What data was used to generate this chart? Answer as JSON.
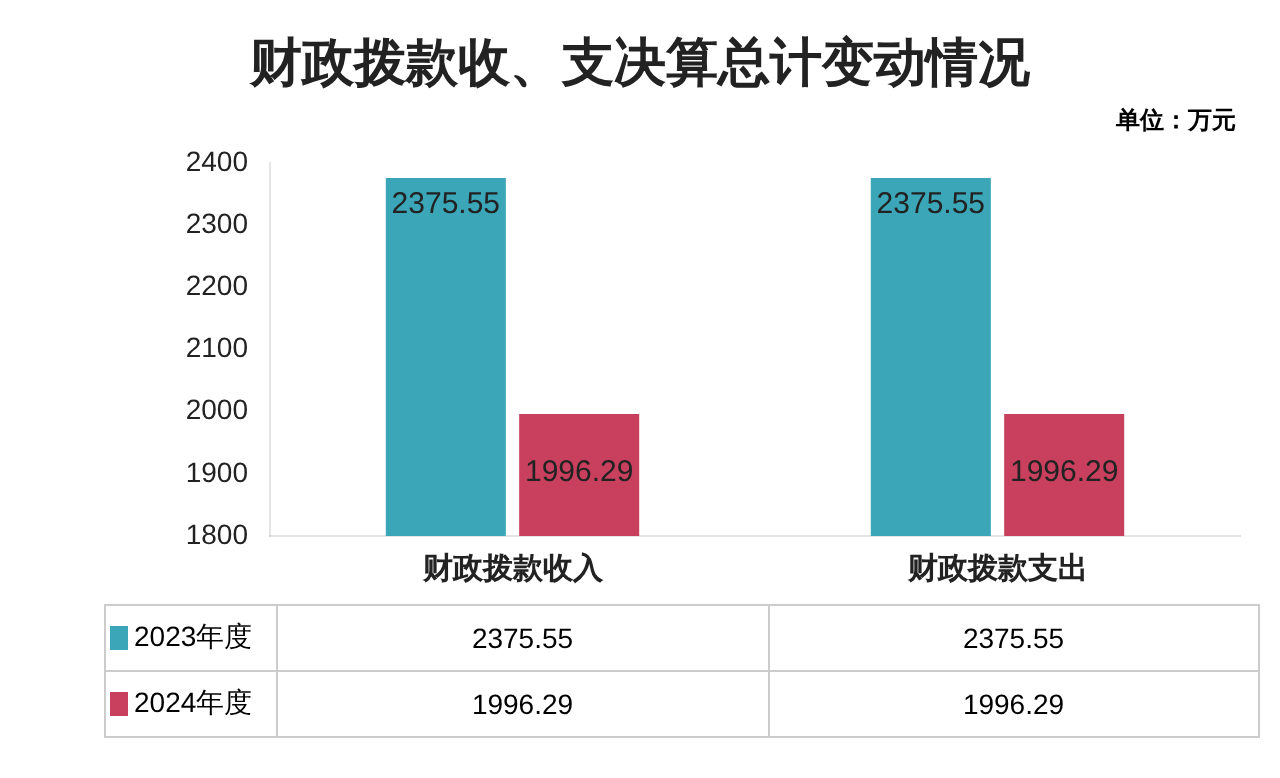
{
  "chart_data": {
    "type": "bar",
    "title": "财政拨款收、支决算总计变动情况",
    "annotations": [
      "单位：万元"
    ],
    "categories": [
      "财政拨款收入",
      "财政拨款支出"
    ],
    "series": [
      {
        "name": "2023年度",
        "color": "#3aa6b8",
        "values": [
          2375.55,
          2375.55
        ],
        "value_labels": [
          "2375.55",
          "2375.55"
        ]
      },
      {
        "name": "2024年度",
        "color": "#c8405e",
        "values": [
          1996.29,
          1996.29
        ],
        "value_labels": [
          "1996.29",
          "1996.29"
        ]
      }
    ],
    "ylim": [
      1800,
      2400
    ],
    "yticks": [
      1800,
      1900,
      2000,
      2100,
      2200,
      2300,
      2400
    ],
    "grid": false,
    "legend": "bottom"
  }
}
